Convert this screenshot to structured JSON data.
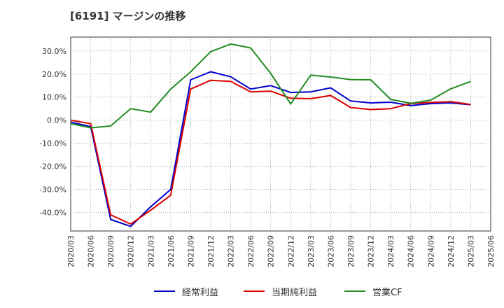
{
  "chart_data": {
    "type": "line",
    "title": "[6191]  マージンの推移",
    "xlabel": "",
    "ylabel": "",
    "ylim": [
      -48,
      36
    ],
    "yticks": [
      30,
      20,
      10,
      0,
      -10,
      -20,
      -30,
      -40
    ],
    "ytick_labels": [
      "30.0%",
      "20.0%",
      "10.0%",
      "0.0%",
      "-10.0%",
      "-20.0%",
      "-30.0%",
      "-40.0%"
    ],
    "categories": [
      "2020/03",
      "2020/06",
      "2020/09",
      "2020/12",
      "2021/03",
      "2021/06",
      "2021/09",
      "2021/12",
      "2022/03",
      "2022/06",
      "2022/09",
      "2022/12",
      "2023/03",
      "2023/06",
      "2023/09",
      "2023/12",
      "2024/03",
      "2024/06",
      "2024/09",
      "2024/12",
      "2025/03",
      "2025/06"
    ],
    "grid": true,
    "legend_position": "bottom",
    "series": [
      {
        "name": "経常利益",
        "color": "#0000cc",
        "values": [
          -0.8,
          -2.8,
          -43.0,
          -46.0,
          -37.5,
          -30.0,
          17.5,
          21.0,
          18.8,
          13.5,
          15.0,
          12.0,
          12.3,
          14.0,
          8.3,
          7.5,
          7.8,
          6.3,
          7.2,
          7.5,
          6.7,
          null
        ]
      },
      {
        "name": "当期純利益",
        "color": "#dd0000",
        "values": [
          0.0,
          -1.5,
          -41.0,
          -45.0,
          -39.0,
          -32.5,
          13.5,
          17.3,
          16.8,
          12.3,
          12.6,
          9.5,
          9.3,
          10.7,
          5.5,
          4.6,
          5.0,
          7.2,
          7.7,
          8.0,
          6.8,
          null
        ]
      },
      {
        "name": "営業CF",
        "color": "#228b22",
        "values": [
          -1.5,
          -3.3,
          -2.5,
          5.0,
          3.5,
          13.5,
          21.0,
          29.7,
          33.0,
          31.3,
          20.3,
          7.0,
          19.5,
          18.7,
          17.6,
          17.5,
          9.0,
          7.3,
          8.7,
          13.6,
          16.8,
          null
        ]
      }
    ]
  }
}
